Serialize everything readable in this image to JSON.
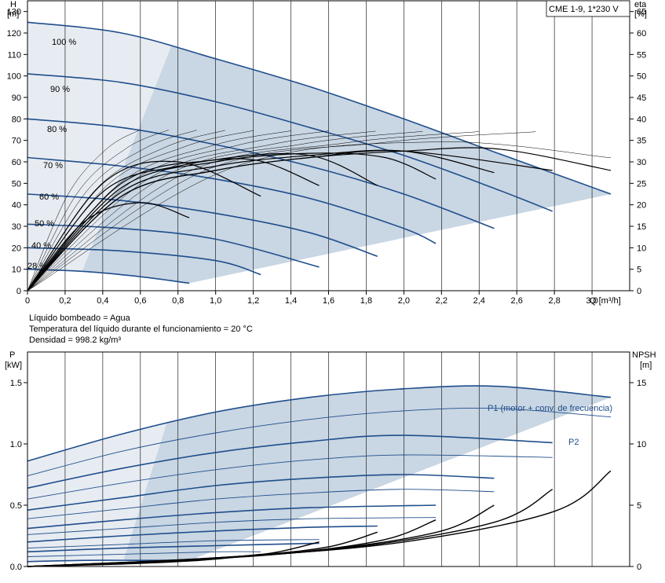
{
  "chart_data": [
    {
      "type": "line",
      "title": "CME 1-9, 1*230 V",
      "xlabel": "Q [m³/h]",
      "ylabel": "H\n[m]",
      "y2label": "eta\n[%]",
      "xlim": [
        0,
        3.2
      ],
      "ylim": [
        0,
        135
      ],
      "y2lim": [
        0,
        67.5
      ],
      "xticks": [
        "0",
        "0,2",
        "0,4",
        "0,6",
        "0,8",
        "1,0",
        "1,2",
        "1,4",
        "1,6",
        "1,8",
        "2,0",
        "2,2",
        "2,4",
        "2,6",
        "2,8",
        "3,0"
      ],
      "yticks": [
        0,
        10,
        20,
        30,
        40,
        50,
        60,
        70,
        80,
        90,
        100,
        110,
        120,
        130
      ],
      "y2ticks": [
        0,
        5,
        10,
        15,
        20,
        25,
        30,
        35,
        40,
        45,
        50,
        55,
        60,
        65
      ],
      "grid": true,
      "speed_labels": [
        "100 %",
        "90 %",
        "80 %",
        "70 %",
        "60 %",
        "50 %",
        "40 %",
        "28 %"
      ],
      "series": [
        {
          "name": "100 %",
          "axis": "H",
          "x": [
            0,
            0.5,
            1.0,
            1.5,
            2.0,
            2.5,
            3.1
          ],
          "y": [
            125,
            120,
            108,
            95,
            80,
            64,
            45
          ]
        },
        {
          "name": "90 %",
          "axis": "H",
          "x": [
            0,
            0.5,
            1.0,
            1.5,
            2.0,
            2.5,
            2.79
          ],
          "y": [
            101,
            97,
            88,
            76,
            63,
            47,
            37
          ]
        },
        {
          "name": "80 %",
          "axis": "H",
          "x": [
            0,
            0.5,
            1.0,
            1.5,
            2.0,
            2.48
          ],
          "y": [
            80,
            76,
            68,
            58,
            45,
            29
          ]
        },
        {
          "name": "70 %",
          "axis": "H",
          "x": [
            0,
            0.5,
            1.0,
            1.5,
            2.0,
            2.17
          ],
          "y": [
            62,
            58,
            52,
            43,
            29,
            22
          ]
        },
        {
          "name": "60 %",
          "axis": "H",
          "x": [
            0,
            0.5,
            1.0,
            1.5,
            1.86
          ],
          "y": [
            45,
            42,
            36,
            27,
            16
          ]
        },
        {
          "name": "50 %",
          "axis": "H",
          "x": [
            0,
            0.5,
            1.0,
            1.55
          ],
          "y": [
            31,
            29,
            24,
            11
          ]
        },
        {
          "name": "40 %",
          "axis": "H",
          "x": [
            0,
            0.5,
            1.0,
            1.24
          ],
          "y": [
            20,
            18.5,
            14,
            7.5
          ]
        },
        {
          "name": "28 %",
          "axis": "H",
          "x": [
            0,
            0.3,
            0.6,
            0.86
          ],
          "y": [
            10,
            9,
            6.5,
            3.5
          ]
        },
        {
          "name": "",
          "axis": "eta",
          "x": [
            0,
            0.5,
            1.0,
            1.5,
            2.0,
            2.5,
            3.1
          ],
          "y": [
            0,
            22,
            28,
            31,
            32.5,
            33,
            28
          ]
        },
        {
          "name": "",
          "axis": "eta",
          "x": [
            0,
            0.5,
            1.0,
            1.5,
            2.0,
            2.79
          ],
          "y": [
            0,
            22,
            28,
            31,
            32.5,
            28
          ]
        },
        {
          "name": "",
          "axis": "eta",
          "x": [
            0,
            0.5,
            1.0,
            1.5,
            2.0,
            2.48
          ],
          "y": [
            0,
            23,
            29,
            31.5,
            32.5,
            27.5
          ]
        },
        {
          "name": "",
          "axis": "eta",
          "x": [
            0,
            0.5,
            1.0,
            1.5,
            1.9,
            2.17
          ],
          "y": [
            0,
            24,
            30,
            32,
            31,
            26
          ]
        },
        {
          "name": "",
          "axis": "eta",
          "x": [
            0,
            0.5,
            1.0,
            1.5,
            1.86
          ],
          "y": [
            0,
            25,
            30.5,
            31.5,
            24.5
          ]
        },
        {
          "name": "",
          "axis": "eta",
          "x": [
            0,
            0.4,
            0.8,
            1.2,
            1.55
          ],
          "y": [
            0,
            23,
            29,
            30.5,
            24.5
          ]
        },
        {
          "name": "",
          "axis": "eta",
          "x": [
            0,
            0.4,
            0.8,
            1.24
          ],
          "y": [
            0,
            25,
            30,
            22
          ]
        },
        {
          "name": "",
          "axis": "eta",
          "x": [
            0,
            0.3,
            0.6,
            0.86
          ],
          "y": [
            0,
            16,
            20.5,
            17
          ]
        }
      ]
    },
    {
      "type": "line",
      "title": "",
      "xlabel": "",
      "ylabel": "P\n[kW]",
      "y2label": "NPSH\n[m]",
      "xlim": [
        0,
        3.2
      ],
      "ylim": [
        0,
        1.75
      ],
      "y2lim": [
        0,
        17.5
      ],
      "yticks": [
        "0.0",
        "0.5",
        "1.0",
        "1.5"
      ],
      "y2ticks": [
        0,
        5,
        10,
        15
      ],
      "grid": true,
      "curve_labels": [
        "P1 (motor + conv. de frecuencia)",
        "P2"
      ],
      "series": [
        {
          "name": "P1 (motor + conv. de frecuencia)",
          "axis": "P",
          "x": [
            0,
            0.5,
            1.0,
            1.5,
            2.0,
            2.5,
            3.1
          ],
          "y": [
            0.86,
            1.08,
            1.26,
            1.38,
            1.45,
            1.47,
            1.38
          ]
        },
        {
          "name": "P2",
          "axis": "P",
          "x": [
            0,
            0.5,
            1.0,
            1.5,
            2.0,
            2.5,
            3.1
          ],
          "y": [
            0.74,
            0.94,
            1.09,
            1.2,
            1.27,
            1.29,
            1.22
          ]
        },
        {
          "name": "",
          "axis": "P",
          "x": [
            0,
            0.5,
            1.0,
            1.5,
            2.0,
            2.79
          ],
          "y": [
            0.64,
            0.8,
            0.93,
            1.02,
            1.07,
            1.01
          ]
        },
        {
          "name": "",
          "axis": "P",
          "x": [
            0,
            0.5,
            1.0,
            1.5,
            2.0,
            2.79
          ],
          "y": [
            0.55,
            0.68,
            0.79,
            0.87,
            0.91,
            0.89
          ]
        },
        {
          "name": "",
          "axis": "P",
          "x": [
            0,
            0.5,
            1.0,
            1.5,
            2.0,
            2.48
          ],
          "y": [
            0.46,
            0.56,
            0.66,
            0.72,
            0.75,
            0.72
          ]
        },
        {
          "name": "",
          "axis": "P",
          "x": [
            0,
            0.5,
            1.0,
            1.5,
            2.0,
            2.48
          ],
          "y": [
            0.39,
            0.47,
            0.55,
            0.6,
            0.63,
            0.61
          ]
        },
        {
          "name": "",
          "axis": "P",
          "x": [
            0,
            0.5,
            1.0,
            1.5,
            2.17
          ],
          "y": [
            0.31,
            0.38,
            0.44,
            0.48,
            0.5
          ]
        },
        {
          "name": "",
          "axis": "P",
          "x": [
            0,
            0.5,
            1.0,
            1.5,
            2.17
          ],
          "y": [
            0.26,
            0.31,
            0.36,
            0.39,
            0.4
          ]
        },
        {
          "name": "",
          "axis": "P",
          "x": [
            0,
            0.5,
            1.0,
            1.5,
            1.86
          ],
          "y": [
            0.2,
            0.25,
            0.29,
            0.32,
            0.33
          ]
        },
        {
          "name": "",
          "axis": "P",
          "x": [
            0,
            0.5,
            1.0,
            1.55
          ],
          "y": [
            0.15,
            0.18,
            0.21,
            0.22
          ]
        },
        {
          "name": "",
          "axis": "P",
          "x": [
            0,
            0.5,
            1.0,
            1.55
          ],
          "y": [
            0.12,
            0.15,
            0.17,
            0.19
          ]
        },
        {
          "name": "",
          "axis": "P",
          "x": [
            0,
            0.5,
            1.0,
            1.24
          ],
          "y": [
            0.08,
            0.1,
            0.12,
            0.12
          ]
        },
        {
          "name": "",
          "axis": "P",
          "x": [
            0,
            0.3,
            0.6,
            0.86
          ],
          "y": [
            0.04,
            0.05,
            0.05,
            0.05
          ]
        },
        {
          "name": "",
          "axis": "NPSH",
          "x": [
            0,
            0.5,
            0.8,
            1.0,
            1.24
          ],
          "y": [
            0,
            0.2,
            0.4,
            0.6,
            1.0
          ]
        },
        {
          "name": "",
          "axis": "NPSH",
          "x": [
            0,
            0.6,
            1.0,
            1.3,
            1.55
          ],
          "y": [
            0,
            0.3,
            0.7,
            1.1,
            2.0
          ]
        },
        {
          "name": "",
          "axis": "NPSH",
          "x": [
            0,
            0.7,
            1.2,
            1.6,
            1.86
          ],
          "y": [
            0,
            0.4,
            0.9,
            1.6,
            2.8
          ]
        },
        {
          "name": "",
          "axis": "NPSH",
          "x": [
            0,
            0.8,
            1.4,
            1.9,
            2.17
          ],
          "y": [
            0,
            0.5,
            1.1,
            2.2,
            3.8
          ]
        },
        {
          "name": "",
          "axis": "NPSH",
          "x": [
            0,
            0.9,
            1.6,
            2.2,
            2.48
          ],
          "y": [
            0,
            0.6,
            1.4,
            2.9,
            5.0
          ]
        },
        {
          "name": "",
          "axis": "NPSH",
          "x": [
            0,
            1.0,
            1.8,
            2.5,
            2.79
          ],
          "y": [
            0,
            0.7,
            1.7,
            3.7,
            6.3
          ]
        },
        {
          "name": "",
          "axis": "NPSH",
          "x": [
            0,
            1.1,
            2.0,
            2.8,
            3.1
          ],
          "y": [
            0,
            0.8,
            2.0,
            4.5,
            7.8
          ]
        }
      ]
    }
  ],
  "info": {
    "liquid": "Líquido bombeado = Agua",
    "temperature": "Temperatura del líquido durante el funcionamiento = 20 °C",
    "density": "Densidad = 998.2 kg/m³"
  },
  "colors": {
    "curve_blue": "#1f4e8c",
    "region_dark": "#c9d6e3",
    "region_light": "#e6eef7",
    "black": "#000000"
  }
}
